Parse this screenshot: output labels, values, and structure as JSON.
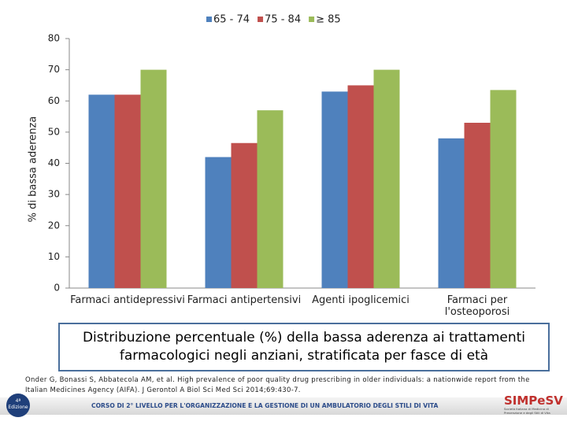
{
  "chart_data": {
    "type": "bar",
    "y_label": "% di bassa aderenza",
    "categories": [
      "Farmaci antidepressivi",
      "Farmaci antipertensivi",
      "Agenti ipoglicemici",
      "Farmaci per l'osteoporosi"
    ],
    "series": [
      {
        "name": "65 - 74",
        "color": "#4f81bd",
        "values": [
          62,
          42,
          63,
          48
        ]
      },
      {
        "name": "75 - 84",
        "color": "#c0504d",
        "values": [
          62,
          46.5,
          65,
          53
        ]
      },
      {
        "name": "≥ 85",
        "color": "#9bbb59",
        "values": [
          70,
          57,
          70,
          63.5
        ]
      }
    ],
    "ylim": [
      0,
      80
    ],
    "yticks": [
      0,
      10,
      20,
      30,
      40,
      50,
      60,
      70,
      80
    ],
    "grid": false,
    "legend": "top"
  },
  "caption": "Distribuzione percentuale (%) della bassa aderenza ai trattamenti farmacologici negli anziani, stratificata per fasce di età",
  "reference": "Onder G, Bonassi S, Abbatecola AM, et al. High prevalence of poor quality drug prescribing in older individuals: a nationwide report from the Italian Medicines Agency (AIFA). J Gerontol A Biol Sci Med Sci 2014;69:430-7.",
  "footer": {
    "badge_number": "4ª",
    "badge_text": "Edizione",
    "course": "CORSO DI 2° LIVELLO PER L'ORGANIZZAZIONE E LA GESTIONE DI UN AMBULATORIO DEGLI STILI DI VITA",
    "logo": "SIMPeSV",
    "logo_subtitle": "Società Italiana di Medicina di Prevenzione e degli Stili di Vita"
  }
}
